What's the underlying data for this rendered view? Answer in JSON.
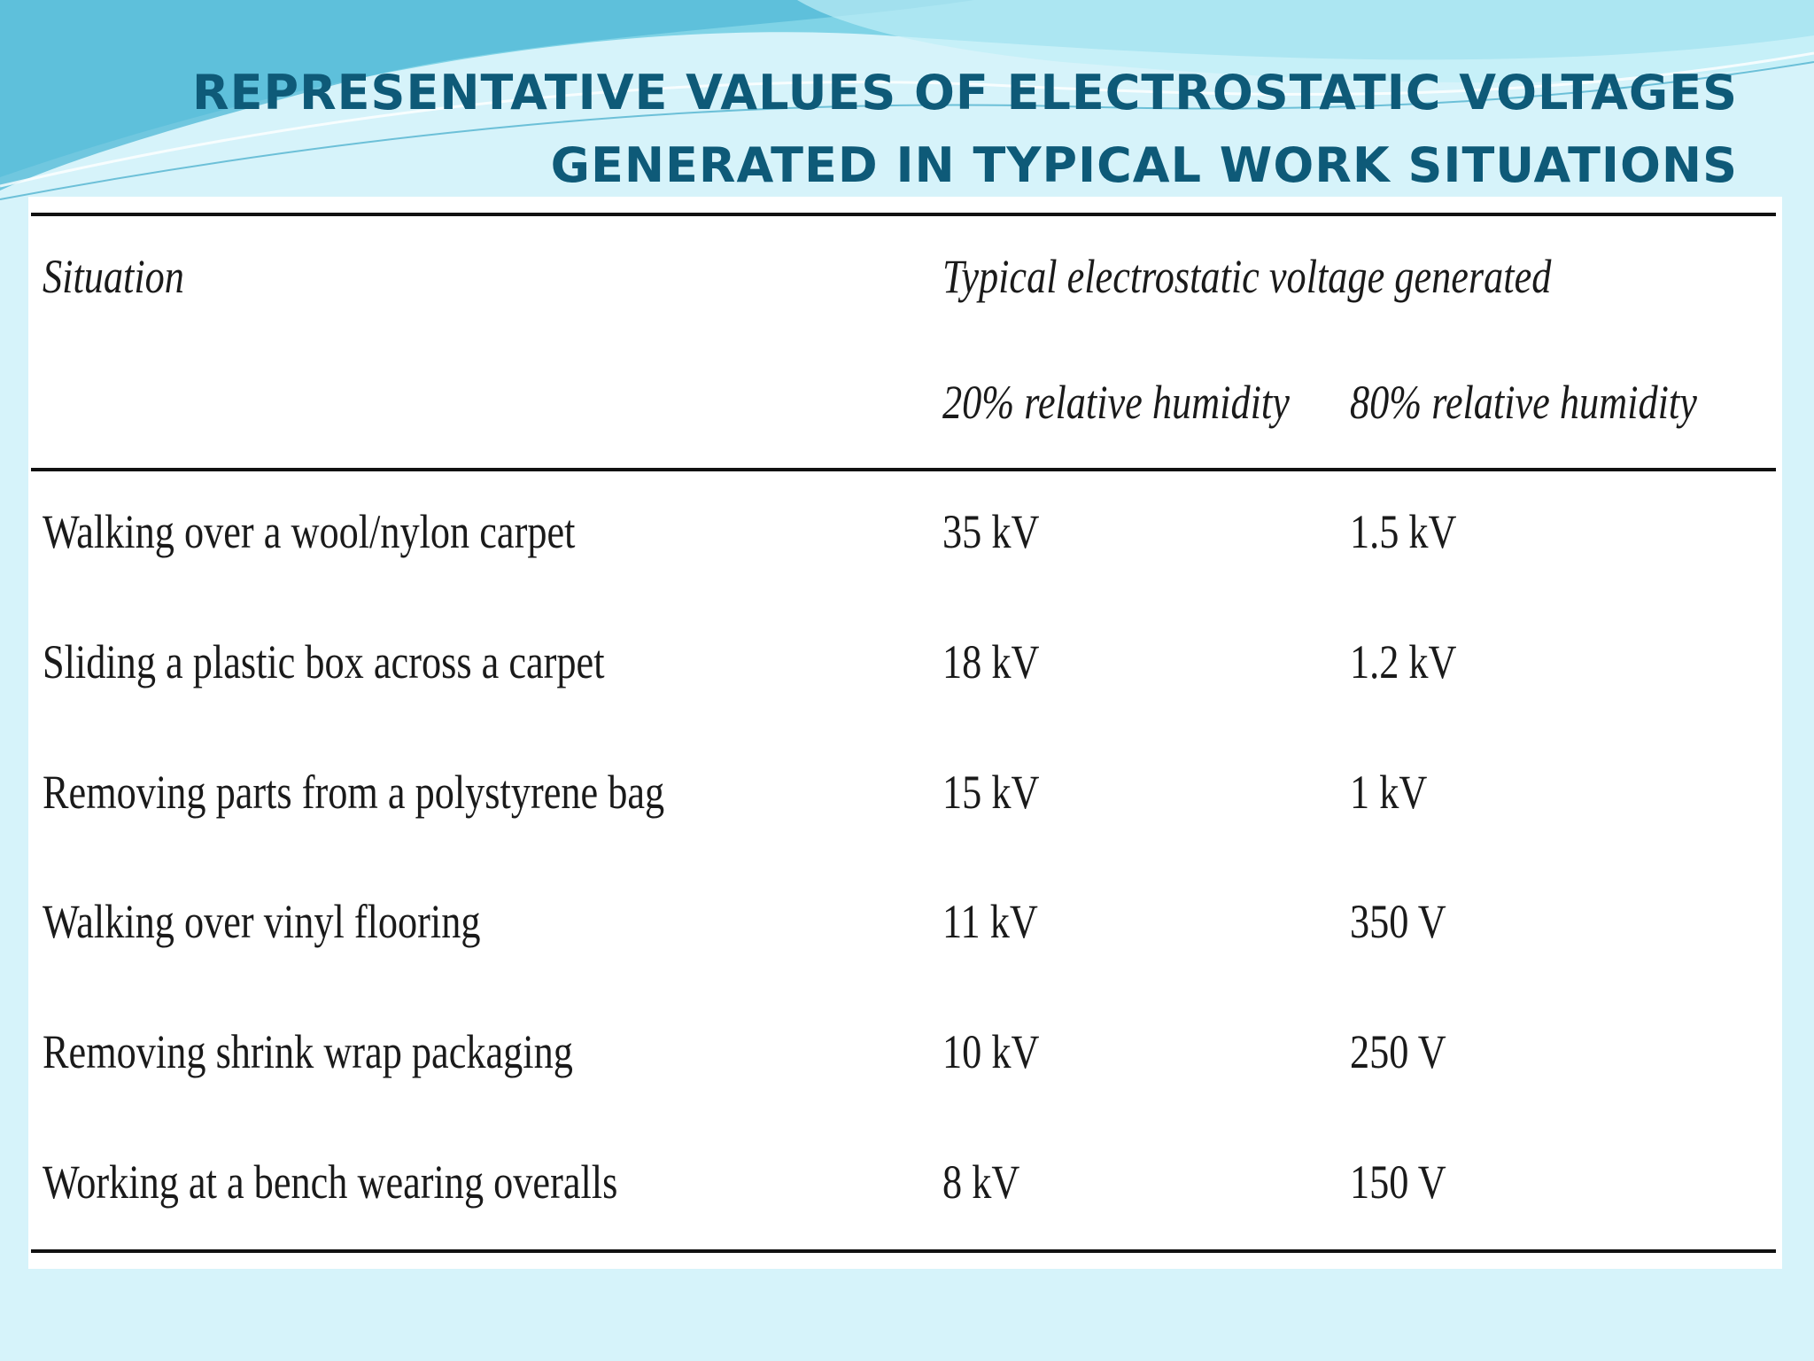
{
  "slide": {
    "title_line1": "REPRESENTATIVE VALUES OF ELECTROSTATIC VOLTAGES",
    "title_line2": "GENERATED IN TYPICAL WORK SITUATIONS"
  },
  "table": {
    "header": {
      "situation": "Situation",
      "group": "Typical electrostatic voltage generated",
      "col_20": "20% relative humidity",
      "col_80": "80% relative humidity"
    },
    "rows": [
      {
        "situation": "Walking over a wool/nylon carpet",
        "rh20": "35 kV",
        "rh80": "1.5 kV"
      },
      {
        "situation": "Sliding a plastic box across a carpet",
        "rh20": "18 kV",
        "rh80": "1.2 kV"
      },
      {
        "situation": "Removing parts from a polystyrene bag",
        "rh20": "15 kV",
        "rh80": "1 kV"
      },
      {
        "situation": "Walking over vinyl flooring",
        "rh20": "11 kV",
        "rh80": "350 V"
      },
      {
        "situation": "Removing shrink wrap packaging",
        "rh20": "10 kV",
        "rh80": "250 V"
      },
      {
        "situation": "Working at a bench wearing overalls",
        "rh20": "8 kV",
        "rh80": "150 V"
      }
    ]
  },
  "colors": {
    "background": "#d6f3fa",
    "title": "#0e5a78",
    "wave_dark": "#5cc3dc",
    "wave_light": "#a9e6f2"
  }
}
